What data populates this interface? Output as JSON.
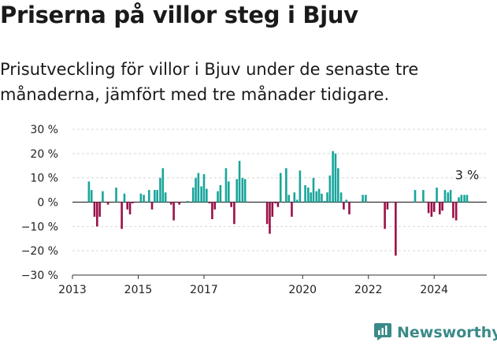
{
  "title": "Priserna på villor steg i Bjuv",
  "subtitle": "Prisutveckling för villor i Bjuv under de senaste tre månaderna, jämfört med tre månader tidigare.",
  "brand": {
    "name": "Newsworthy"
  },
  "colors": {
    "positive": "#1aa59b",
    "negative": "#9b1048",
    "grid": "#d8d8d8",
    "brand": "#3a8a88"
  },
  "chart_data": {
    "type": "bar",
    "ylim": [
      -30,
      30
    ],
    "yticks": [
      30,
      20,
      10,
      0,
      -10,
      -20,
      -30
    ],
    "ytick_labels": [
      "30 %",
      "20 %",
      "10 %",
      "0 %",
      "−10 %",
      "−20 %",
      "−30 %"
    ],
    "xlim": [
      2013,
      2025.6
    ],
    "xticks": [
      2013,
      2015,
      2017,
      2020,
      2022,
      2024
    ],
    "xtick_labels": [
      "2013",
      "2015",
      "2017",
      "2020",
      "2022",
      "2024"
    ],
    "grid": true,
    "annotation": {
      "text": "3 %",
      "x": 2025.0,
      "y": 3
    },
    "x": [
      2013.5,
      2013.58,
      2013.67,
      2013.75,
      2013.83,
      2013.92,
      2014.08,
      2014.33,
      2014.5,
      2014.58,
      2014.67,
      2014.75,
      2014.83,
      2015.08,
      2015.17,
      2015.33,
      2015.42,
      2015.5,
      2015.58,
      2015.67,
      2015.75,
      2015.83,
      2016.0,
      2016.08,
      2016.25,
      2016.5,
      2016.67,
      2016.75,
      2016.83,
      2016.92,
      2017.0,
      2017.08,
      2017.17,
      2017.25,
      2017.33,
      2017.42,
      2017.5,
      2017.67,
      2017.75,
      2017.83,
      2017.92,
      2018.0,
      2018.08,
      2018.17,
      2018.25,
      2018.92,
      2019.0,
      2019.08,
      2019.17,
      2019.25,
      2019.33,
      2019.5,
      2019.58,
      2019.67,
      2019.75,
      2019.83,
      2019.92,
      2020.08,
      2020.17,
      2020.25,
      2020.33,
      2020.42,
      2020.5,
      2020.58,
      2020.67,
      2020.75,
      2020.83,
      2020.92,
      2021.0,
      2021.08,
      2021.17,
      2021.25,
      2021.33,
      2021.42,
      2021.83,
      2021.92,
      2022.0,
      2022.5,
      2022.58,
      2022.83,
      2023.42,
      2023.67,
      2023.83,
      2023.92,
      2024.0,
      2024.08,
      2024.17,
      2024.25,
      2024.33,
      2024.42,
      2024.5,
      2024.58,
      2024.67,
      2024.75,
      2024.83,
      2024.92,
      2025.0
    ],
    "values": [
      8.5,
      5,
      -6,
      -10,
      -6,
      4.5,
      -1,
      6,
      -11,
      3.5,
      -3,
      -5,
      -0.5,
      3.5,
      3,
      5,
      -3,
      5,
      5,
      10,
      14,
      4,
      -1,
      -7.5,
      -1,
      0.5,
      6,
      10,
      12,
      6.5,
      11.5,
      5.5,
      -0.5,
      -7,
      -3,
      4.5,
      7,
      14,
      8.5,
      -2,
      -9,
      9.5,
      17,
      10,
      9.5,
      -9,
      -13,
      -6,
      -0.5,
      -2,
      12,
      14,
      3,
      -6,
      4,
      1,
      13,
      7,
      6,
      4,
      10,
      4.5,
      5.5,
      3.5,
      0.5,
      4,
      11,
      21,
      20,
      14,
      4,
      -3,
      1,
      -5,
      3,
      3,
      0,
      -11,
      -3,
      -22,
      5,
      5,
      -4.5,
      -6,
      -4,
      6,
      -5,
      -3.5,
      5,
      4,
      5,
      -6.5,
      -7.5,
      2,
      3,
      3,
      3
    ]
  }
}
